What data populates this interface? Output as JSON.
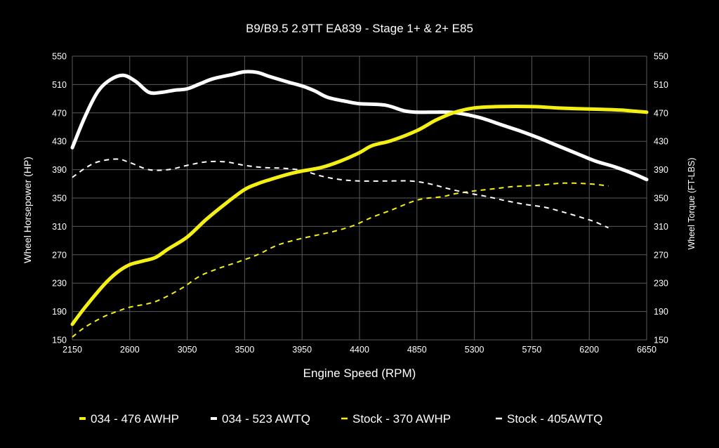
{
  "chart_data": {
    "type": "line",
    "title": "B9/B9.5 2.9TT EA839 - Stage 1+ & 2+ E85",
    "xlabel": "Engine Speed (RPM)",
    "ylabel": "Wheel Horsepower (HP)",
    "ylabel_right": "Wheel Torque (FT-LBS)",
    "xlim": [
      2150,
      6650
    ],
    "ylim": [
      150,
      550
    ],
    "x_ticks": [
      "2150",
      "2600",
      "3050",
      "3500",
      "3950",
      "4400",
      "4850",
      "5300",
      "5750",
      "6200",
      "6650"
    ],
    "y_ticks": [
      "150",
      "190",
      "230",
      "270",
      "310",
      "350",
      "390",
      "430",
      "470",
      "510",
      "550"
    ],
    "grid": true,
    "legend_position": "bottom",
    "series": [
      {
        "name": "034 - 476 AWHP",
        "color": "#f5f014",
        "style": "solid",
        "points": [
          [
            2150,
            172
          ],
          [
            2250,
            196
          ],
          [
            2400,
            228
          ],
          [
            2500,
            245
          ],
          [
            2600,
            256
          ],
          [
            2700,
            261
          ],
          [
            2800,
            266
          ],
          [
            2900,
            278
          ],
          [
            3050,
            295
          ],
          [
            3200,
            320
          ],
          [
            3350,
            342
          ],
          [
            3500,
            362
          ],
          [
            3600,
            370
          ],
          [
            3700,
            376
          ],
          [
            3850,
            384
          ],
          [
            3950,
            388
          ],
          [
            4100,
            393
          ],
          [
            4250,
            402
          ],
          [
            4400,
            414
          ],
          [
            4500,
            424
          ],
          [
            4650,
            431
          ],
          [
            4850,
            445
          ],
          [
            5000,
            460
          ],
          [
            5150,
            471
          ],
          [
            5300,
            477
          ],
          [
            5500,
            479
          ],
          [
            5750,
            479
          ],
          [
            5950,
            477
          ],
          [
            6100,
            476
          ],
          [
            6300,
            475
          ],
          [
            6450,
            474
          ],
          [
            6650,
            471
          ]
        ]
      },
      {
        "name": "034 - 523 AWTQ",
        "color": "#ffffff",
        "style": "solid",
        "points": [
          [
            2150,
            421
          ],
          [
            2250,
            465
          ],
          [
            2350,
            500
          ],
          [
            2450,
            517
          ],
          [
            2550,
            523
          ],
          [
            2650,
            514
          ],
          [
            2750,
            499
          ],
          [
            2850,
            499
          ],
          [
            2950,
            502
          ],
          [
            3050,
            504
          ],
          [
            3150,
            511
          ],
          [
            3250,
            518
          ],
          [
            3400,
            524
          ],
          [
            3500,
            528
          ],
          [
            3600,
            527
          ],
          [
            3700,
            521
          ],
          [
            3850,
            513
          ],
          [
            3950,
            508
          ],
          [
            4050,
            501
          ],
          [
            4150,
            492
          ],
          [
            4300,
            486
          ],
          [
            4400,
            483
          ],
          [
            4600,
            481
          ],
          [
            4750,
            473
          ],
          [
            4850,
            471
          ],
          [
            4950,
            471
          ],
          [
            5100,
            471
          ],
          [
            5200,
            469
          ],
          [
            5350,
            463
          ],
          [
            5500,
            454
          ],
          [
            5650,
            445
          ],
          [
            5800,
            435
          ],
          [
            5950,
            424
          ],
          [
            6100,
            413
          ],
          [
            6250,
            402
          ],
          [
            6400,
            394
          ],
          [
            6550,
            384
          ],
          [
            6650,
            376
          ]
        ]
      },
      {
        "name": "Stock - 370 AWHP",
        "color": "#f5f014",
        "style": "dashed",
        "points": [
          [
            2150,
            154
          ],
          [
            2250,
            168
          ],
          [
            2400,
            183
          ],
          [
            2500,
            190
          ],
          [
            2600,
            196
          ],
          [
            2800,
            204
          ],
          [
            3000,
            222
          ],
          [
            3150,
            240
          ],
          [
            3300,
            251
          ],
          [
            3450,
            260
          ],
          [
            3600,
            270
          ],
          [
            3750,
            283
          ],
          [
            3900,
            291
          ],
          [
            4050,
            297
          ],
          [
            4200,
            303
          ],
          [
            4350,
            311
          ],
          [
            4500,
            323
          ],
          [
            4650,
            333
          ],
          [
            4800,
            344
          ],
          [
            4900,
            349
          ],
          [
            5050,
            352
          ],
          [
            5150,
            356
          ],
          [
            5300,
            360
          ],
          [
            5450,
            363
          ],
          [
            5600,
            366
          ],
          [
            5800,
            368
          ],
          [
            6000,
            371
          ],
          [
            6200,
            370
          ],
          [
            6350,
            367
          ]
        ]
      },
      {
        "name": "Stock - 405AWTQ",
        "color": "#ffffff",
        "style": "dashed",
        "points": [
          [
            2150,
            379
          ],
          [
            2250,
            392
          ],
          [
            2350,
            401
          ],
          [
            2500,
            405
          ],
          [
            2600,
            400
          ],
          [
            2750,
            390
          ],
          [
            2900,
            390
          ],
          [
            3050,
            396
          ],
          [
            3200,
            401
          ],
          [
            3350,
            401
          ],
          [
            3500,
            396
          ],
          [
            3650,
            393
          ],
          [
            3800,
            392
          ],
          [
            3950,
            389
          ],
          [
            4100,
            381
          ],
          [
            4250,
            376
          ],
          [
            4400,
            374
          ],
          [
            4600,
            374
          ],
          [
            4800,
            374
          ],
          [
            4950,
            370
          ],
          [
            5100,
            363
          ],
          [
            5250,
            357
          ],
          [
            5400,
            352
          ],
          [
            5550,
            346
          ],
          [
            5700,
            341
          ],
          [
            5850,
            337
          ],
          [
            6000,
            330
          ],
          [
            6150,
            322
          ],
          [
            6250,
            316
          ],
          [
            6350,
            308
          ]
        ]
      }
    ]
  }
}
